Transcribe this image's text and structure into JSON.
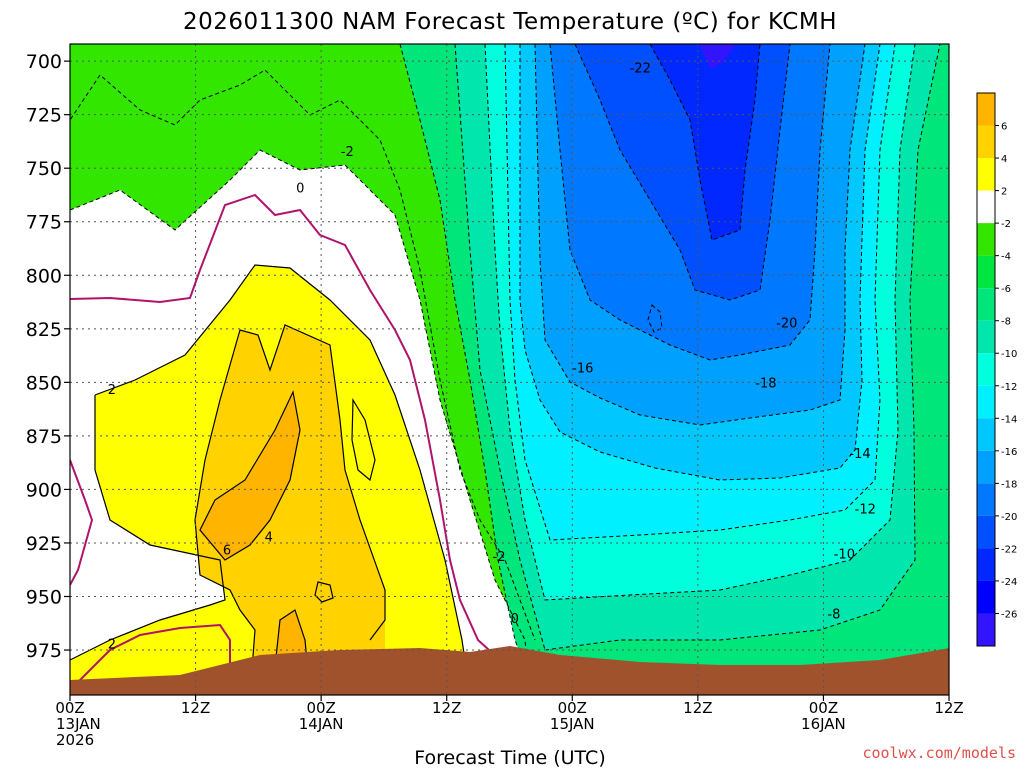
{
  "chart_data": {
    "type": "contour",
    "title": "2026011300 NAM Forecast Temperature (ºC) for KCMH",
    "xlabel": "Forecast Time (UTC)",
    "ylabel": "",
    "credit": "coolwx.com/models",
    "x_ticks": [
      {
        "hour": 0,
        "lines": [
          "00Z",
          "13JAN",
          "2026"
        ]
      },
      {
        "hour": 12,
        "lines": [
          "12Z"
        ]
      },
      {
        "hour": 24,
        "lines": [
          "00Z",
          "14JAN"
        ]
      },
      {
        "hour": 36,
        "lines": [
          "12Z"
        ]
      },
      {
        "hour": 48,
        "lines": [
          "00Z",
          "15JAN"
        ]
      },
      {
        "hour": 60,
        "lines": [
          "12Z"
        ]
      },
      {
        "hour": 72,
        "lines": [
          "00Z",
          "16JAN"
        ]
      },
      {
        "hour": 84,
        "lines": [
          "12Z"
        ]
      }
    ],
    "xlim_hours": [
      0,
      84
    ],
    "y_ticks": [
      700,
      725,
      750,
      775,
      800,
      825,
      850,
      875,
      900,
      925,
      950,
      975
    ],
    "ylim_hPa": [
      692,
      996
    ],
    "colorbar": {
      "levels": [
        "6",
        "4",
        "2",
        "-2",
        "-4",
        "-6",
        "-8",
        "-10",
        "-12",
        "-14",
        "-16",
        "-18",
        "-20",
        "-22",
        "-24",
        "-26"
      ],
      "colors": [
        "#ffb400",
        "#ffd200",
        "#ffff00",
        "#ffffff",
        "#32e600",
        "#00e640",
        "#00e67a",
        "#00e6ad",
        "#00ffdd",
        "#00f0ff",
        "#00c8ff",
        "#00a0ff",
        "#0078ff",
        "#0050ff",
        "#0028ff",
        "#0000ff",
        "#3214ff"
      ]
    },
    "contour_labels": [
      {
        "text": "-22",
        "hour": 54.5,
        "p": 703
      },
      {
        "text": "-2",
        "hour": 26.5,
        "p": 742
      },
      {
        "text": "0",
        "hour": 22.0,
        "p": 759
      },
      {
        "text": "-20",
        "hour": 68.5,
        "p": 822
      },
      {
        "text": "-16",
        "hour": 49.0,
        "p": 843
      },
      {
        "text": "-18",
        "hour": 66.5,
        "p": 850
      },
      {
        "text": "2",
        "hour": 4.0,
        "p": 853
      },
      {
        "text": "-14",
        "hour": 75.5,
        "p": 883
      },
      {
        "text": "-12",
        "hour": 76.0,
        "p": 909
      },
      {
        "text": "4",
        "hour": 19.0,
        "p": 922
      },
      {
        "text": "6",
        "hour": 15.0,
        "p": 928
      },
      {
        "text": "-10",
        "hour": 74.0,
        "p": 930
      },
      {
        "text": "-2",
        "hour": 41.0,
        "p": 931
      },
      {
        "text": "-8",
        "hour": 73.0,
        "p": 958
      },
      {
        "text": "0",
        "hour": 42.5,
        "p": 960
      },
      {
        "text": "2",
        "hour": 4.0,
        "p": 972
      }
    ]
  }
}
